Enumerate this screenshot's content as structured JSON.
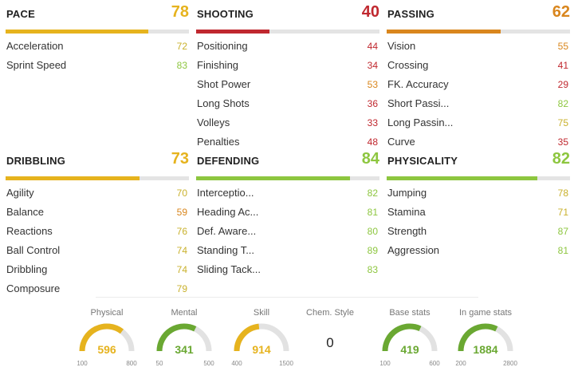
{
  "blocks": [
    {
      "key": "pace",
      "title": "PACE",
      "value": 78,
      "color": "#e6b31e",
      "stats": [
        {
          "name": "Acceleration",
          "value": 72,
          "color": "#c9b12c"
        },
        {
          "name": "Sprint Speed",
          "value": 83,
          "color": "#8dc63f"
        }
      ]
    },
    {
      "key": "shooting",
      "title": "SHOOTING",
      "value": 40,
      "color": "#c0282f",
      "stats": [
        {
          "name": "Positioning",
          "value": 44,
          "color": "#c0282f"
        },
        {
          "name": "Finishing",
          "value": 34,
          "color": "#c0282f"
        },
        {
          "name": "Shot Power",
          "value": 53,
          "color": "#d9861d"
        },
        {
          "name": "Long Shots",
          "value": 36,
          "color": "#c0282f"
        },
        {
          "name": "Volleys",
          "value": 33,
          "color": "#c0282f"
        },
        {
          "name": "Penalties",
          "value": 48,
          "color": "#c0282f"
        }
      ]
    },
    {
      "key": "passing",
      "title": "PASSING",
      "value": 62,
      "color": "#d9861d",
      "stats": [
        {
          "name": "Vision",
          "value": 55,
          "color": "#d9861d"
        },
        {
          "name": "Crossing",
          "value": 41,
          "color": "#c0282f"
        },
        {
          "name": "FK. Accuracy",
          "value": 29,
          "color": "#c0282f"
        },
        {
          "name": "Short Passi...",
          "value": 82,
          "color": "#8dc63f"
        },
        {
          "name": "Long Passin...",
          "value": 75,
          "color": "#c9b12c"
        },
        {
          "name": "Curve",
          "value": 35,
          "color": "#c0282f"
        }
      ]
    },
    {
      "key": "dribbling",
      "title": "DRIBBLING",
      "value": 73,
      "color": "#e6b31e",
      "stats": [
        {
          "name": "Agility",
          "value": 70,
          "color": "#c9b12c"
        },
        {
          "name": "Balance",
          "value": 59,
          "color": "#d9861d"
        },
        {
          "name": "Reactions",
          "value": 76,
          "color": "#c9b12c"
        },
        {
          "name": "Ball Control",
          "value": 74,
          "color": "#c9b12c"
        },
        {
          "name": "Dribbling",
          "value": 74,
          "color": "#c9b12c"
        },
        {
          "name": "Composure",
          "value": 79,
          "color": "#c9b12c"
        }
      ]
    },
    {
      "key": "defending",
      "title": "DEFENDING",
      "value": 84,
      "color": "#8dc63f",
      "stats": [
        {
          "name": "Interceptio...",
          "value": 82,
          "color": "#8dc63f"
        },
        {
          "name": "Heading Ac...",
          "value": 81,
          "color": "#8dc63f"
        },
        {
          "name": "Def. Aware...",
          "value": 80,
          "color": "#8dc63f"
        },
        {
          "name": "Standing T...",
          "value": 89,
          "color": "#8dc63f"
        },
        {
          "name": "Sliding Tack...",
          "value": 83,
          "color": "#8dc63f"
        }
      ]
    },
    {
      "key": "physicality",
      "title": "PHYSICALITY",
      "value": 82,
      "color": "#8dc63f",
      "stats": [
        {
          "name": "Jumping",
          "value": 78,
          "color": "#c9b12c"
        },
        {
          "name": "Stamina",
          "value": 71,
          "color": "#c9b12c"
        },
        {
          "name": "Strength",
          "value": 87,
          "color": "#8dc63f"
        },
        {
          "name": "Aggression",
          "value": 81,
          "color": "#8dc63f"
        }
      ]
    }
  ],
  "gauges": [
    {
      "key": "physical",
      "label": "Physical",
      "value": 596,
      "min": 100,
      "max": 800,
      "color": "#e6b31e"
    },
    {
      "key": "mental",
      "label": "Mental",
      "value": 341,
      "min": 50,
      "max": 500,
      "color": "#6aa832"
    },
    {
      "key": "skill",
      "label": "Skill",
      "value": 914,
      "min": 400,
      "max": 1500,
      "color": "#e6b31e"
    },
    {
      "key": "chem-style",
      "label": "Chem. Style",
      "value": "0",
      "plain": true
    },
    {
      "key": "base-stats",
      "label": "Base stats",
      "value": 419,
      "min": 100,
      "max": 600,
      "color": "#6aa832"
    },
    {
      "key": "in-game-stats",
      "label": "In game stats",
      "value": 1884,
      "min": 200,
      "max": 2800,
      "color": "#6aa832"
    }
  ]
}
